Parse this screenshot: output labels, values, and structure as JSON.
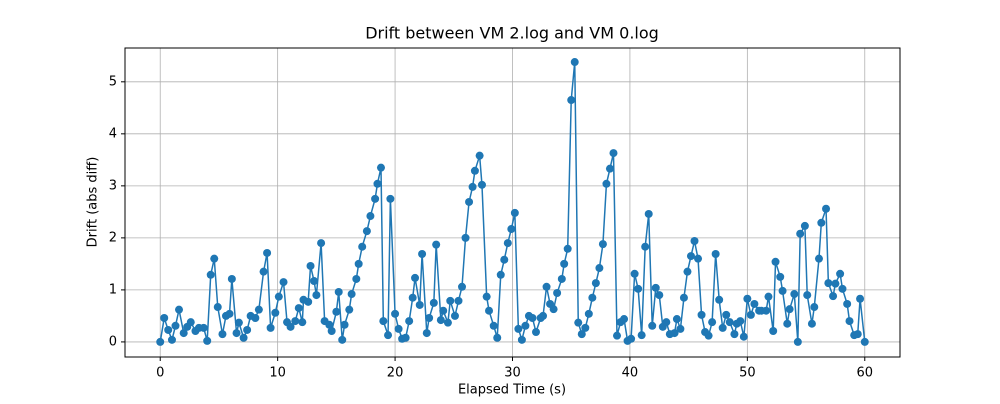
{
  "chart_data": {
    "type": "line",
    "title": "Drift between VM 2.log and VM 0.log",
    "x_label": "Elapsed Time (s)",
    "y_label": "Drift (abs diff)",
    "xlim": [
      -3,
      63
    ],
    "ylim": [
      -0.29,
      5.65
    ],
    "xticks": [
      0,
      10,
      20,
      30,
      40,
      50,
      60
    ],
    "yticks": [
      0,
      1,
      2,
      3,
      4,
      5
    ],
    "grid": true,
    "series": [
      {
        "name": "Drift",
        "color": "#1f77b4",
        "x": [
          0,
          0.34,
          0.68,
          1.0,
          1.3,
          1.6,
          2.0,
          2.3,
          2.6,
          3.0,
          3.3,
          3.7,
          4.0,
          4.3,
          4.6,
          4.9,
          5.3,
          5.6,
          5.9,
          6.1,
          6.5,
          6.7,
          7.1,
          7.4,
          7.7,
          8.1,
          8.4,
          8.8,
          9.1,
          9.4,
          9.8,
          10.1,
          10.5,
          10.8,
          11.1,
          11.5,
          11.8,
          12.1,
          12.2,
          12.6,
          12.8,
          13.1,
          13.3,
          13.7,
          14.0,
          14.4,
          14.6,
          15.0,
          15.2,
          15.5,
          15.7,
          16.1,
          16.3,
          16.7,
          16.9,
          17.2,
          17.6,
          17.9,
          18.3,
          18.5,
          18.8,
          19.0,
          19.4,
          19.6,
          20.0,
          20.3,
          20.6,
          20.9,
          21.2,
          21.5,
          21.7,
          22.1,
          22.3,
          22.7,
          22.9,
          23.3,
          23.5,
          23.9,
          24.1,
          24.5,
          24.7,
          25.1,
          25.4,
          25.7,
          26.0,
          26.3,
          26.6,
          26.8,
          27.2,
          27.4,
          27.8,
          28.0,
          28.4,
          28.7,
          29.0,
          29.3,
          29.6,
          29.9,
          30.2,
          30.5,
          30.8,
          31.1,
          31.4,
          31.7,
          32.0,
          32.4,
          32.6,
          32.9,
          33.2,
          33.5,
          33.8,
          34.2,
          34.4,
          34.7,
          35.0,
          35.3,
          35.6,
          35.9,
          36.2,
          36.5,
          36.8,
          37.1,
          37.4,
          37.7,
          38.0,
          38.3,
          38.6,
          38.9,
          39.2,
          39.5,
          39.8,
          40.1,
          40.4,
          40.7,
          41.0,
          41.3,
          41.6,
          41.9,
          42.2,
          42.5,
          42.8,
          43.1,
          43.4,
          43.8,
          44.0,
          44.3,
          44.6,
          44.9,
          45.2,
          45.5,
          45.8,
          46.1,
          46.4,
          46.7,
          47.0,
          47.3,
          47.6,
          47.9,
          48.2,
          48.5,
          48.9,
          49.1,
          49.4,
          49.7,
          50.0,
          50.3,
          50.6,
          51.0,
          51.2,
          51.6,
          51.8,
          52.2,
          52.4,
          52.8,
          53.0,
          53.4,
          53.6,
          54.0,
          54.3,
          54.5,
          54.9,
          55.1,
          55.5,
          55.7,
          56.1,
          56.3,
          56.7,
          56.9,
          57.3,
          57.5,
          57.9,
          58.1,
          58.5,
          58.7,
          59.1,
          59.4,
          59.6,
          60.0
        ],
        "values": [
          0,
          0.46,
          0.23,
          0.04,
          0.31,
          0.62,
          0.17,
          0.29,
          0.38,
          0.21,
          0.27,
          0.27,
          0.02,
          1.29,
          1.6,
          0.67,
          0.15,
          0.5,
          0.54,
          1.21,
          0.17,
          0.37,
          0.08,
          0.23,
          0.5,
          0.46,
          0.62,
          1.35,
          1.71,
          0.27,
          0.56,
          0.87,
          1.15,
          0.38,
          0.29,
          0.4,
          0.65,
          0.38,
          0.81,
          0.77,
          1.46,
          1.17,
          0.9,
          1.9,
          0.4,
          0.33,
          0.21,
          0.58,
          0.96,
          0.04,
          0.33,
          0.62,
          0.92,
          1.21,
          1.5,
          1.83,
          2.13,
          2.42,
          2.75,
          3.04,
          3.35,
          0.4,
          0.13,
          2.75,
          0.54,
          0.25,
          0.06,
          0.08,
          0.4,
          0.85,
          1.23,
          0.71,
          1.69,
          0.17,
          0.46,
          0.75,
          1.87,
          0.42,
          0.6,
          0.37,
          0.79,
          0.5,
          0.79,
          1.06,
          2.0,
          2.69,
          2.98,
          3.29,
          3.58,
          3.02,
          0.87,
          0.6,
          0.31,
          0.08,
          1.29,
          1.58,
          1.9,
          2.17,
          2.48,
          0.25,
          0.04,
          0.31,
          0.5,
          0.46,
          0.19,
          0.46,
          0.5,
          1.06,
          0.73,
          0.63,
          0.94,
          1.21,
          1.5,
          1.79,
          4.65,
          5.38,
          0.37,
          0.15,
          0.27,
          0.54,
          0.85,
          1.13,
          1.42,
          1.88,
          3.04,
          3.33,
          3.63,
          0.12,
          0.38,
          0.44,
          0.02,
          0.06,
          1.31,
          1.02,
          0.13,
          1.83,
          2.46,
          0.31,
          1.04,
          0.9,
          0.29,
          0.38,
          0.15,
          0.17,
          0.44,
          0.25,
          0.85,
          1.35,
          1.65,
          1.94,
          1.6,
          0.52,
          0.19,
          0.12,
          0.38,
          1.69,
          0.81,
          0.27,
          0.52,
          0.38,
          0.15,
          0.35,
          0.4,
          0.1,
          0.83,
          0.52,
          0.73,
          0.6,
          0.6,
          0.6,
          0.87,
          0.21,
          1.54,
          1.25,
          0.98,
          0.35,
          0.63,
          0.92,
          0,
          2.08,
          2.23,
          0.9,
          0.35,
          0.67,
          1.6,
          2.29,
          2.56,
          1.13,
          0.88,
          1.12,
          1.31,
          1.02,
          0.73,
          0.4,
          0.13,
          0.15,
          0.83,
          0
        ]
      }
    ]
  }
}
